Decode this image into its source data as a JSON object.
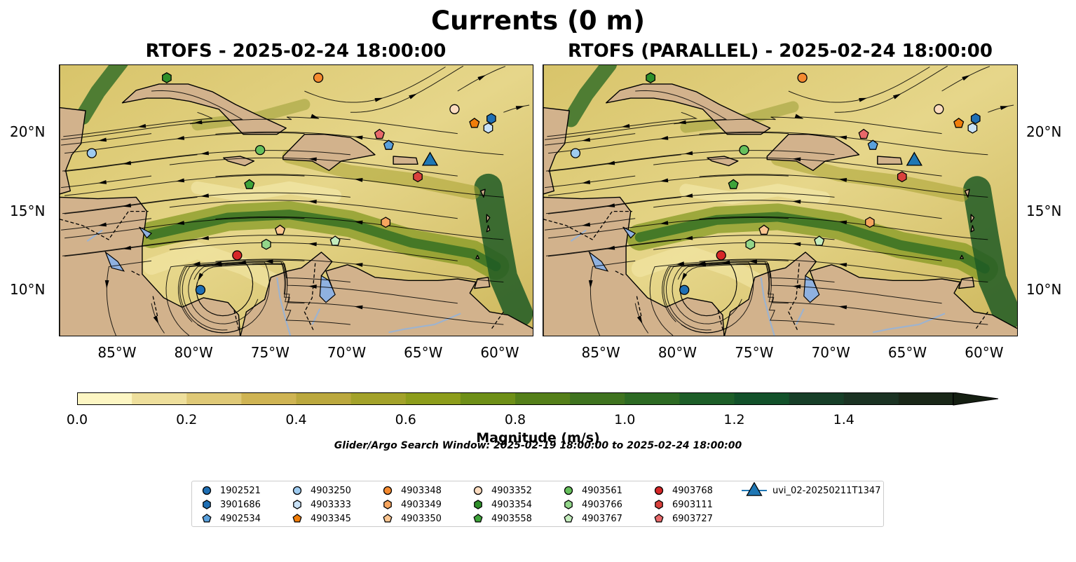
{
  "title": "Currents (0 m)",
  "panels": [
    {
      "id": "rtofs",
      "title": "RTOFS - 2025-02-24 18:00:00"
    },
    {
      "id": "rtofs-parallel",
      "title": "RTOFS (PARALLEL) - 2025-02-24 18:00:00"
    }
  ],
  "axes": {
    "lon_ticks": [
      "85°W",
      "80°W",
      "75°W",
      "70°W",
      "65°W",
      "60°W"
    ],
    "lat_ticks": [
      "20°N",
      "15°N",
      "10°N"
    ]
  },
  "colorbar": {
    "label": "Magnitude (m/s)",
    "ticks": [
      "0.0",
      "0.2",
      "0.4",
      "0.6",
      "0.8",
      "1.0",
      "1.2",
      "1.4"
    ],
    "colors": [
      "#fdf6c3",
      "#eedf9c",
      "#dfc977",
      "#cfb453",
      "#bba83e",
      "#a3a22a",
      "#8d9d1b",
      "#6e8f17",
      "#547f19",
      "#3f731f",
      "#2d6a23",
      "#1d5e28",
      "#12512a",
      "#173f28",
      "#1b3323",
      "#1a2718"
    ]
  },
  "search_window": "Glider/Argo Search Window: 2025-02-19 18:00:00 to 2025-02-24 18:00:00",
  "legend": [
    {
      "label": "1902521",
      "marker": "circle",
      "color": "#1f6fb4"
    },
    {
      "label": "3901686",
      "marker": "hexagon",
      "color": "#1f6fb4"
    },
    {
      "label": "4902534",
      "marker": "pentagon",
      "color": "#5aa0dc"
    },
    {
      "label": "4903250",
      "marker": "circle",
      "color": "#9ecbf0"
    },
    {
      "label": "4903333",
      "marker": "hexagon",
      "color": "#c9e2f7"
    },
    {
      "label": "4903345",
      "marker": "pentagon",
      "color": "#f07d0a"
    },
    {
      "label": "4903348",
      "marker": "circle",
      "color": "#f58a2f"
    },
    {
      "label": "4903349",
      "marker": "hexagon",
      "color": "#f6a55e"
    },
    {
      "label": "4903350",
      "marker": "pentagon",
      "color": "#fbc590"
    },
    {
      "label": "4903352",
      "marker": "circle",
      "color": "#fcdcc0"
    },
    {
      "label": "4903354",
      "marker": "hexagon",
      "color": "#2f8f2a"
    },
    {
      "label": "4903558",
      "marker": "pentagon",
      "color": "#3ea33a"
    },
    {
      "label": "4903561",
      "marker": "circle",
      "color": "#66c05c"
    },
    {
      "label": "4903766",
      "marker": "hexagon",
      "color": "#93d68a"
    },
    {
      "label": "4903767",
      "marker": "pentagon",
      "color": "#c4ecbd"
    },
    {
      "label": "4903768",
      "marker": "circle",
      "color": "#d62728"
    },
    {
      "label": "6903111",
      "marker": "hexagon",
      "color": "#d9413c"
    },
    {
      "label": "6903727",
      "marker": "pentagon",
      "color": "#e8696a"
    },
    {
      "label": "uvi_02-20250211T1347",
      "marker": "triangle",
      "color": "#1f77b4"
    }
  ],
  "map_extent": {
    "lon_min": -89,
    "lon_max": -58,
    "lat_min": 7,
    "lat_max": 24.3
  },
  "floats_panel1": [
    {
      "id": "1902521",
      "lon": -79.8,
      "lat": 10.0
    },
    {
      "id": "3901686",
      "lon": -60.8,
      "lat": 20.9
    },
    {
      "id": "4902534",
      "lon": -67.5,
      "lat": 19.2
    },
    {
      "id": "4903250",
      "lon": -86.9,
      "lat": 18.7
    },
    {
      "id": "4903333",
      "lon": -61.0,
      "lat": 20.3
    },
    {
      "id": "4903345",
      "lon": -61.9,
      "lat": 20.6
    },
    {
      "id": "4903348",
      "lon": -72.1,
      "lat": 23.5
    },
    {
      "id": "4903349",
      "lon": -67.7,
      "lat": 14.3
    },
    {
      "id": "4903350",
      "lon": -74.6,
      "lat": 13.8
    },
    {
      "id": "4903352",
      "lon": -63.2,
      "lat": 21.5
    },
    {
      "id": "4903354",
      "lon": -82.0,
      "lat": 23.5
    },
    {
      "id": "4903558",
      "lon": -76.6,
      "lat": 16.7
    },
    {
      "id": "4903561",
      "lon": -75.9,
      "lat": 18.9
    },
    {
      "id": "4903766",
      "lon": -75.5,
      "lat": 12.9
    },
    {
      "id": "4903767",
      "lon": -71.0,
      "lat": 13.1
    },
    {
      "id": "4903768",
      "lon": -77.4,
      "lat": 12.2
    },
    {
      "id": "6903111",
      "lon": -65.6,
      "lat": 17.2
    },
    {
      "id": "6903727",
      "lon": -68.1,
      "lat": 19.9
    },
    {
      "id": "uvi_02-20250211T1347",
      "lon": -64.8,
      "lat": 18.2
    }
  ],
  "floats_panel2": [
    {
      "id": "1902521",
      "lon": -79.8,
      "lat": 10.0
    },
    {
      "id": "3901686",
      "lon": -60.8,
      "lat": 20.9
    },
    {
      "id": "4902534",
      "lon": -67.5,
      "lat": 19.2
    },
    {
      "id": "4903250",
      "lon": -86.9,
      "lat": 18.7
    },
    {
      "id": "4903333",
      "lon": -61.0,
      "lat": 20.3
    },
    {
      "id": "4903345",
      "lon": -61.9,
      "lat": 20.6
    },
    {
      "id": "4903348",
      "lon": -72.1,
      "lat": 23.5
    },
    {
      "id": "4903349",
      "lon": -67.7,
      "lat": 14.3
    },
    {
      "id": "4903350",
      "lon": -74.6,
      "lat": 13.8
    },
    {
      "id": "4903352",
      "lon": -63.2,
      "lat": 21.5
    },
    {
      "id": "4903354",
      "lon": -82.0,
      "lat": 23.5
    },
    {
      "id": "4903558",
      "lon": -76.6,
      "lat": 16.7
    },
    {
      "id": "4903561",
      "lon": -75.9,
      "lat": 18.9
    },
    {
      "id": "4903766",
      "lon": -75.5,
      "lat": 12.9
    },
    {
      "id": "4903767",
      "lon": -71.0,
      "lat": 13.1
    },
    {
      "id": "4903768",
      "lon": -77.4,
      "lat": 12.2
    },
    {
      "id": "6903111",
      "lon": -65.6,
      "lat": 17.2
    },
    {
      "id": "6903727",
      "lon": -68.1,
      "lat": 19.9
    },
    {
      "id": "uvi_02-20250211T1347",
      "lon": -64.8,
      "lat": 18.2
    }
  ]
}
